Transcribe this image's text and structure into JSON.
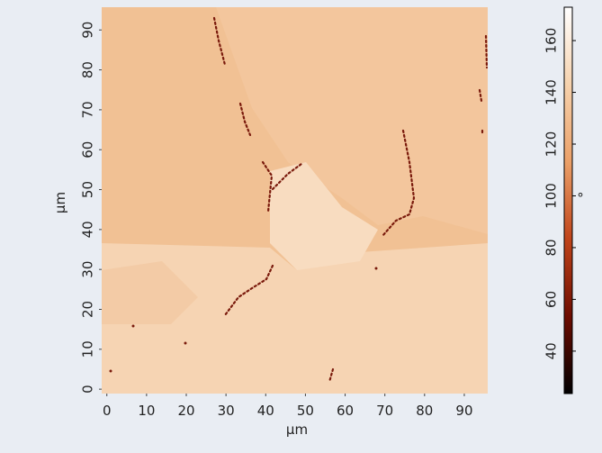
{
  "chart_data": {
    "type": "heatmap",
    "xlabel": "μm",
    "ylabel": "μm",
    "xlim": [
      -1.3,
      95.9
    ],
    "xticks": [
      0,
      10,
      20,
      30,
      40,
      50,
      60,
      70,
      80,
      90
    ],
    "ylim": [
      -1.1,
      95.7
    ],
    "yticks": [
      0,
      10,
      20,
      30,
      40,
      50,
      60,
      70,
      80,
      90
    ],
    "colorbar": {
      "label": "°",
      "lim": [
        23.6,
        172.9
      ],
      "ticks": [
        40,
        60,
        80,
        100,
        120,
        140,
        160
      ],
      "colors": [
        "#000000",
        "#6e0c00",
        "#c0441a",
        "#eba068",
        "#f6d2ad",
        "#ffffff"
      ]
    }
  }
}
